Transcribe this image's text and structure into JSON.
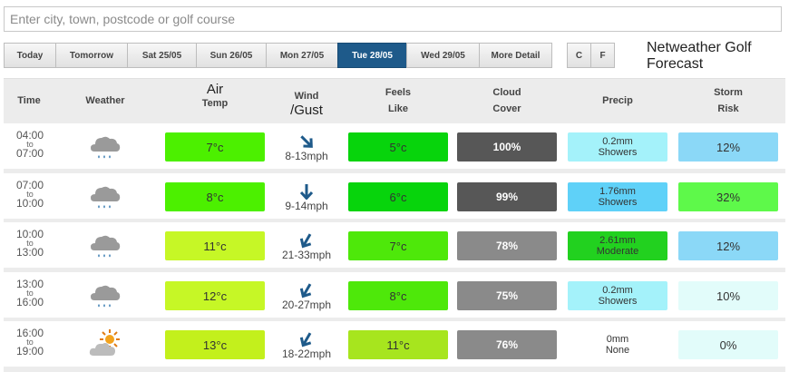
{
  "search": {
    "placeholder": "Enter city, town, postcode or golf course"
  },
  "tabs": [
    "Today",
    "Tomorrow",
    "Sat 25/05",
    "Sun 26/05",
    "Mon 27/05",
    "Tue 28/05",
    "Wed 29/05",
    "More Detail"
  ],
  "active_tab": "Tue 28/05",
  "units": [
    "C",
    "F"
  ],
  "title": "Netweather Golf Forecast",
  "headers": {
    "time": "Time",
    "weather": "Weather",
    "air_temp_1": "Air",
    "air_temp_2": "Temp",
    "wind_1": "Wind",
    "wind_2": "/Gust",
    "feels_1": "Feels",
    "feels_2": "Like",
    "cloud_1": "Cloud",
    "cloud_2": "Cover",
    "precip": "Precip",
    "storm_1": "Storm",
    "storm_2": "Risk"
  },
  "rows": [
    {
      "time_from": "04:00",
      "to": "to",
      "time_to": "07:00",
      "weather_icon": "rain-cloud-icon",
      "air_temp": "7°c",
      "wind_dir_deg": 315,
      "wind": "8-13mph",
      "feels": "5°c",
      "cloud": "100%",
      "precip_amount": "0.2mm",
      "precip_type": "Showers",
      "storm": "12%"
    },
    {
      "time_from": "07:00",
      "to": "to",
      "time_to": "10:00",
      "weather_icon": "rain-cloud-icon",
      "air_temp": "8°c",
      "wind_dir_deg": 0,
      "wind": "9-14mph",
      "feels": "6°c",
      "cloud": "99%",
      "precip_amount": "1.76mm",
      "precip_type": "Showers",
      "storm": "32%"
    },
    {
      "time_from": "10:00",
      "to": "to",
      "time_to": "13:00",
      "weather_icon": "rain-cloud-icon",
      "air_temp": "11°c",
      "wind_dir_deg": 30,
      "wind": "21-33mph",
      "feels": "7°c",
      "cloud": "78%",
      "precip_amount": "2.61mm",
      "precip_type": "Moderate",
      "storm": "12%"
    },
    {
      "time_from": "13:00",
      "to": "to",
      "time_to": "16:00",
      "weather_icon": "rain-cloud-icon",
      "air_temp": "12°c",
      "wind_dir_deg": 30,
      "wind": "20-27mph",
      "feels": "8°c",
      "cloud": "75%",
      "precip_amount": "0.2mm",
      "precip_type": "Showers",
      "storm": "10%"
    },
    {
      "time_from": "16:00",
      "to": "to",
      "time_to": "19:00",
      "weather_icon": "sun-behind-cloud-icon",
      "air_temp": "13°c",
      "wind_dir_deg": 30,
      "wind": "18-22mph",
      "feels": "11°c",
      "cloud": "76%",
      "precip_amount": "0mm",
      "precip_type": "None",
      "storm": "0%"
    }
  ],
  "colors": {
    "air_temp": [
      "#4cf000",
      "#4cf000",
      "#c6f726",
      "#c6f726",
      "#c3f01c"
    ],
    "feels": [
      "#07d40c",
      "#07d40c",
      "#4ee80a",
      "#4ee80a",
      "#a7e51e"
    ],
    "cloud": [
      "#575757",
      "#575757",
      "#8a8a8a",
      "#8a8a8a",
      "#8a8a8a"
    ],
    "precip": [
      "#a4f2fa",
      "#5fd1f8",
      "#22d11f",
      "#a4f2fa",
      "#ffffff"
    ],
    "storm": [
      "#8bd8f7",
      "#5ef94a",
      "#8bd8f7",
      "#e2fcfa",
      "#e2fcfa"
    ],
    "active_tab": "#1e5a8a",
    "arrow": "#1e5a8a"
  }
}
